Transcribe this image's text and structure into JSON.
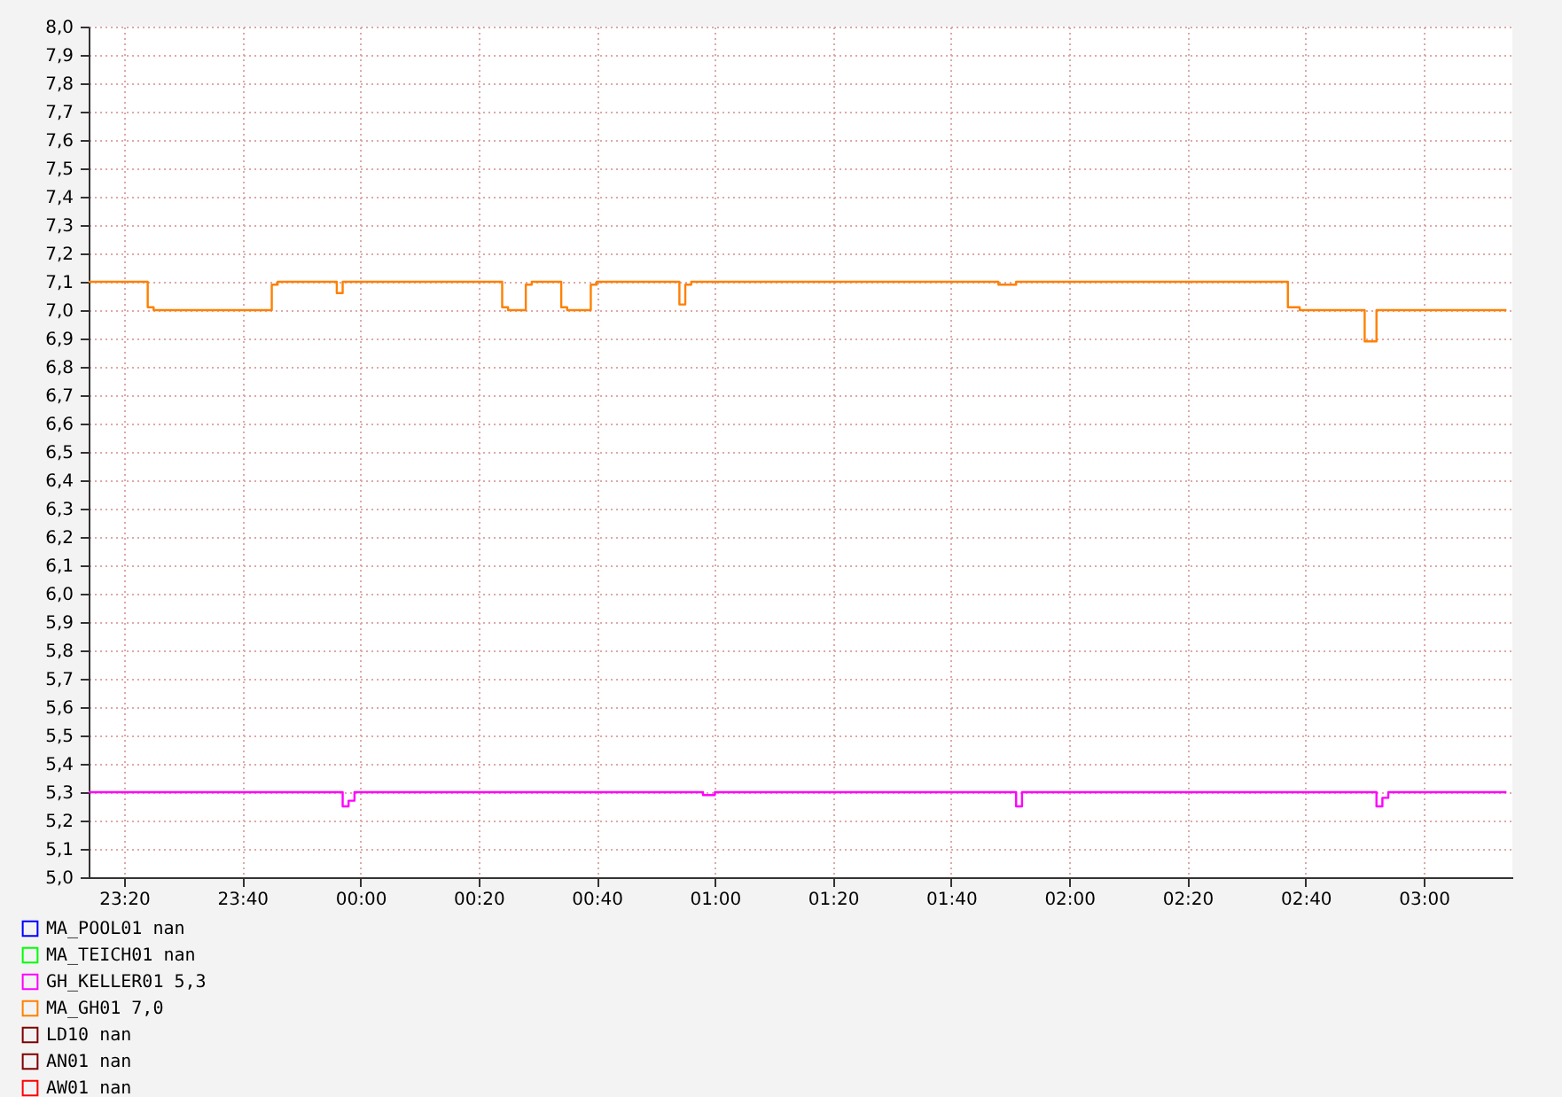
{
  "chart_data": {
    "type": "step",
    "xlim": [
      "--01-01T23:14",
      "--01-02T03:15"
    ],
    "xticks": [
      {
        "value": "--01-01T23:20",
        "label": "23:20"
      },
      {
        "value": "--01-01T23:40",
        "label": "23:40"
      },
      {
        "value": "--01-02T00:00",
        "label": "00:00"
      },
      {
        "value": "--01-02T00:20",
        "label": "00:20"
      },
      {
        "value": "--01-02T00:40",
        "label": "00:40"
      },
      {
        "value": "--01-02T01:00",
        "label": "01:00"
      },
      {
        "value": "--01-02T01:20",
        "label": "01:20"
      },
      {
        "value": "--01-02T01:40",
        "label": "01:40"
      },
      {
        "value": "--01-02T02:00",
        "label": "02:00"
      },
      {
        "value": "--01-02T02:20",
        "label": "02:20"
      },
      {
        "value": "--01-02T02:40",
        "label": "02:40"
      },
      {
        "value": "--01-02T03:00",
        "label": "03:00"
      }
    ],
    "ylim": [
      5.0,
      8.0
    ],
    "yticks": [
      {
        "value": 5.0,
        "label": "5,0"
      },
      {
        "value": 5.1,
        "label": "5,1"
      },
      {
        "value": 5.2,
        "label": "5,2"
      },
      {
        "value": 5.3,
        "label": "5,3"
      },
      {
        "value": 5.4,
        "label": "5,4"
      },
      {
        "value": 5.5,
        "label": "5,5"
      },
      {
        "value": 5.6,
        "label": "5,6"
      },
      {
        "value": 5.7,
        "label": "5,7"
      },
      {
        "value": 5.8,
        "label": "5,8"
      },
      {
        "value": 5.9,
        "label": "5,9"
      },
      {
        "value": 6.0,
        "label": "6,0"
      },
      {
        "value": 6.1,
        "label": "6,1"
      },
      {
        "value": 6.2,
        "label": "6,2"
      },
      {
        "value": 6.3,
        "label": "6,3"
      },
      {
        "value": 6.4,
        "label": "6,4"
      },
      {
        "value": 6.5,
        "label": "6,5"
      },
      {
        "value": 6.6,
        "label": "6,6"
      },
      {
        "value": 6.7,
        "label": "6,7"
      },
      {
        "value": 6.8,
        "label": "6,8"
      },
      {
        "value": 6.9,
        "label": "6,9"
      },
      {
        "value": 7.0,
        "label": "7,0"
      },
      {
        "value": 7.1,
        "label": "7,1"
      },
      {
        "value": 7.2,
        "label": "7,2"
      },
      {
        "value": 7.3,
        "label": "7,3"
      },
      {
        "value": 7.4,
        "label": "7,4"
      },
      {
        "value": 7.5,
        "label": "7,5"
      },
      {
        "value": 7.6,
        "label": "7,6"
      },
      {
        "value": 7.7,
        "label": "7,7"
      },
      {
        "value": 7.8,
        "label": "7,8"
      },
      {
        "value": 7.9,
        "label": "7,9"
      },
      {
        "value": 8.0,
        "label": "8,0"
      }
    ],
    "grid": true,
    "legend": "bottom",
    "series": [
      {
        "name": "MA_POOL01   nan",
        "color": "#0000ff"
      },
      {
        "name": "MA_TEICH01   nan",
        "color": "#00ff00"
      },
      {
        "name": "GH_KELLER01   5,3",
        "color": "#ff00ff",
        "x": [
          "--01-01T23:14",
          "--01-01T23:57",
          "--01-01T23:58",
          "--01-01T23:59",
          "--01-02T00:58",
          "--01-02T01:00",
          "--01-02T01:51",
          "--01-02T01:52",
          "--01-02T02:52",
          "--01-02T02:53",
          "--01-02T02:54",
          "--01-02T03:14"
        ],
        "values": [
          5.3,
          5.25,
          5.27,
          5.3,
          5.29,
          5.3,
          5.25,
          5.3,
          5.25,
          5.28,
          5.3,
          5.3
        ]
      },
      {
        "name": "MA_GH01   7,0",
        "color": "#ff8000",
        "x": [
          "--01-01T23:14",
          "--01-01T23:24",
          "--01-01T23:25",
          "--01-01T23:45",
          "--01-01T23:46",
          "--01-01T23:56",
          "--01-01T23:57",
          "--01-02T00:24",
          "--01-02T00:25",
          "--01-02T00:28",
          "--01-02T00:29",
          "--01-02T00:34",
          "--01-02T00:35",
          "--01-02T00:39",
          "--01-02T00:40",
          "--01-02T00:54",
          "--01-02T00:55",
          "--01-02T00:56",
          "--01-02T01:48",
          "--01-02T01:51",
          "--01-02T02:37",
          "--01-02T02:39",
          "--01-02T02:50",
          "--01-02T02:52",
          "--01-02T03:14"
        ],
        "values": [
          7.1,
          7.01,
          7.0,
          7.09,
          7.1,
          7.06,
          7.1,
          7.01,
          7.0,
          7.09,
          7.1,
          7.01,
          7.0,
          7.09,
          7.1,
          7.02,
          7.09,
          7.1,
          7.09,
          7.1,
          7.01,
          7.0,
          6.89,
          7.0,
          7.0
        ]
      },
      {
        "name": "LD10   nan",
        "color": "#7f0000"
      },
      {
        "name": "AN01   nan",
        "color": "#7f0000"
      },
      {
        "name": "AW01   nan",
        "color": "#ff0000"
      }
    ]
  }
}
